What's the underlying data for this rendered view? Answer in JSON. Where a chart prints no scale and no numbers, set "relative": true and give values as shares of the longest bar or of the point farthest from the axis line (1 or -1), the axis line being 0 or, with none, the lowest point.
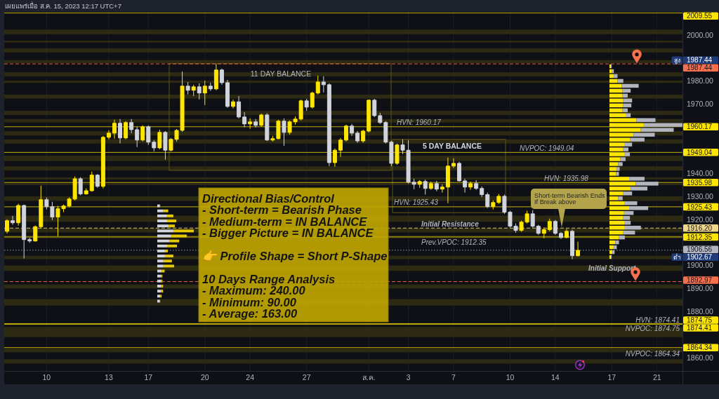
{
  "chart_data": [
    {
      "type": "candlestick",
      "title": "เผยแพร่เมื่อ ส.ค. 15, 2023 12:17 UTC+7",
      "categories": [
        null,
        null,
        null,
        null,
        null,
        null,
        null,
        "10",
        null,
        null,
        null,
        null,
        null,
        null,
        null,
        null,
        null,
        null,
        "13",
        null,
        null,
        null,
        null,
        null,
        null,
        "17",
        null,
        null,
        null,
        null,
        null,
        null,
        null,
        null,
        null,
        "20",
        null,
        null,
        null,
        null,
        null,
        null,
        null,
        "24",
        null,
        null,
        null,
        null,
        null,
        null,
        null,
        null,
        null,
        "27",
        null,
        null,
        null,
        null,
        null,
        null,
        null,
        null,
        null,
        null,
        "ส.ค.",
        null,
        null,
        null,
        null,
        null,
        null,
        "3",
        null,
        null,
        null,
        null,
        null,
        null,
        null,
        "7",
        null,
        null,
        null,
        null,
        null,
        null,
        null,
        null,
        null,
        "10",
        null,
        null,
        null,
        null,
        null,
        null,
        null,
        "14",
        null,
        null,
        null,
        null,
        null,
        null,
        null,
        null,
        null,
        "17",
        null,
        null,
        null,
        null,
        null,
        null,
        null,
        "21",
        null,
        null,
        null,
        null
      ],
      "ohlc": [
        [
          1914.8,
          1920.0,
          1913.9,
          1919.4
        ],
        [
          1919.4,
          1921.5,
          1917.6,
          1918.5
        ],
        [
          1918.5,
          1926.8,
          1917.3,
          1926.0
        ],
        [
          1926.0,
          1926.4,
          1903.0,
          1911.2
        ],
        [
          1911.2,
          1912.0,
          1909.8,
          1910.6
        ],
        [
          1910.6,
          1917.3,
          1910.3,
          1916.8
        ],
        [
          1916.8,
          1934.6,
          1916.0,
          1928.5
        ],
        [
          1928.5,
          1929.5,
          1924.3,
          1925.5
        ],
        [
          1925.5,
          1927.6,
          1919.7,
          1921.0
        ],
        [
          1921.0,
          1925.8,
          1912.7,
          1924.6
        ],
        [
          1924.6,
          1926.4,
          1923.1,
          1925.8
        ],
        [
          1925.8,
          1929.5,
          1925.2,
          1928.8
        ],
        [
          1928.8,
          1938.6,
          1928.2,
          1937.6
        ],
        [
          1937.6,
          1938.3,
          1930.4,
          1931.0
        ],
        [
          1931.0,
          1933.4,
          1930.7,
          1932.4
        ],
        [
          1932.4,
          1940.7,
          1932.0,
          1939.2
        ],
        [
          1939.2,
          1939.6,
          1933.7,
          1934.3
        ],
        [
          1934.3,
          1956.2,
          1933.4,
          1955.6
        ],
        [
          1955.6,
          1958.6,
          1954.7,
          1957.4
        ],
        [
          1957.4,
          1963.2,
          1955.0,
          1961.7
        ],
        [
          1961.7,
          1963.5,
          1952.9,
          1955.3
        ],
        [
          1955.3,
          1962.6,
          1954.7,
          1962.0
        ],
        [
          1962.0,
          1963.5,
          1957.4,
          1958.9
        ],
        [
          1958.9,
          1960.2,
          1951.3,
          1954.4
        ],
        [
          1954.4,
          1960.8,
          1953.8,
          1960.2
        ],
        [
          1960.2,
          1960.8,
          1952.3,
          1953.5
        ],
        [
          1953.5,
          1954.4,
          1949.5,
          1951.0
        ],
        [
          1951.0,
          1958.9,
          1950.4,
          1957.7
        ],
        [
          1957.7,
          1958.3,
          1945.9,
          1950.0
        ],
        [
          1950.0,
          1955.3,
          1949.5,
          1954.7
        ],
        [
          1954.7,
          1959.2,
          1953.8,
          1958.6
        ],
        [
          1958.6,
          1984.2,
          1958.0,
          1977.8
        ],
        [
          1977.8,
          1979.6,
          1974.2,
          1976.0
        ],
        [
          1976.0,
          1978.4,
          1973.5,
          1977.5
        ],
        [
          1977.5,
          1979.0,
          1972.0,
          1974.8
        ],
        [
          1974.8,
          1980.2,
          1969.6,
          1977.8
        ],
        [
          1977.8,
          1979.3,
          1975.7,
          1976.6
        ],
        [
          1976.6,
          1987.44,
          1976.0,
          1984.8
        ],
        [
          1984.8,
          1985.4,
          1978.4,
          1979.3
        ],
        [
          1979.3,
          1980.5,
          1968.4,
          1969.0
        ],
        [
          1969.0,
          1972.0,
          1968.1,
          1971.0
        ],
        [
          1971.0,
          1973.5,
          1963.8,
          1964.4
        ],
        [
          1964.4,
          1966.5,
          1959.9,
          1961.4
        ],
        [
          1961.4,
          1963.8,
          1959.3,
          1962.3
        ],
        [
          1962.3,
          1963.5,
          1959.9,
          1960.8
        ],
        [
          1960.8,
          1965.9,
          1960.2,
          1965.3
        ],
        [
          1965.3,
          1966.0,
          1954.0,
          1954.4
        ],
        [
          1954.4,
          1956.2,
          1953.8,
          1955.0
        ],
        [
          1955.0,
          1963.2,
          1954.7,
          1962.6
        ],
        [
          1962.6,
          1963.8,
          1951.9,
          1957.7
        ],
        [
          1957.7,
          1962.9,
          1956.8,
          1962.3
        ],
        [
          1962.3,
          1964.7,
          1961.1,
          1963.5
        ],
        [
          1963.5,
          1972.0,
          1962.9,
          1971.4
        ],
        [
          1971.4,
          1972.3,
          1967.1,
          1968.7
        ],
        [
          1968.7,
          1975.4,
          1968.1,
          1974.8
        ],
        [
          1974.8,
          1982.4,
          1974.2,
          1979.6
        ],
        [
          1979.6,
          1982.1,
          1975.1,
          1978.4
        ],
        [
          1978.4,
          1979.0,
          1943.1,
          1944.6
        ],
        [
          1944.6,
          1950.7,
          1942.8,
          1950.0
        ],
        [
          1950.0,
          1955.3,
          1947.1,
          1954.4
        ],
        [
          1954.4,
          1961.1,
          1953.8,
          1960.5
        ],
        [
          1960.5,
          1961.4,
          1956.2,
          1957.4
        ],
        [
          1957.4,
          1958.3,
          1953.2,
          1954.0
        ],
        [
          1954.0,
          1958.9,
          1953.2,
          1958.3
        ],
        [
          1958.3,
          1972.0,
          1957.7,
          1971.7
        ],
        [
          1971.7,
          1972.3,
          1964.4,
          1965.0
        ],
        [
          1965.0,
          1966.2,
          1961.4,
          1962.0
        ],
        [
          1962.0,
          1962.6,
          1952.9,
          1953.5
        ],
        [
          1953.5,
          1954.1,
          1943.1,
          1944.3
        ],
        [
          1944.3,
          1952.9,
          1943.7,
          1952.3
        ],
        [
          1952.3,
          1954.7,
          1948.3,
          1950.0
        ],
        [
          1950.0,
          1954.4,
          1935.5,
          1936.1
        ],
        [
          1936.1,
          1937.6,
          1933.1,
          1935.2
        ],
        [
          1935.2,
          1937.0,
          1933.7,
          1936.4
        ],
        [
          1936.4,
          1937.3,
          1930.7,
          1933.4
        ],
        [
          1933.4,
          1936.4,
          1932.8,
          1935.5
        ],
        [
          1935.5,
          1936.7,
          1932.2,
          1933.1
        ],
        [
          1933.1,
          1935.2,
          1931.6,
          1934.0
        ],
        [
          1934.0,
          1946.8,
          1927.0,
          1943.1
        ],
        [
          1943.1,
          1946.5,
          1942.2,
          1944.3
        ],
        [
          1944.3,
          1945.0,
          1936.4,
          1936.7
        ],
        [
          1936.7,
          1937.6,
          1931.6,
          1934.0
        ],
        [
          1934.0,
          1936.4,
          1932.8,
          1935.5
        ],
        [
          1935.5,
          1937.0,
          1932.8,
          1933.4
        ],
        [
          1933.4,
          1934.3,
          1929.7,
          1930.7
        ],
        [
          1930.7,
          1931.6,
          1924.9,
          1925.5
        ],
        [
          1925.5,
          1928.2,
          1924.3,
          1927.3
        ],
        [
          1927.3,
          1931.0,
          1926.7,
          1930.0
        ],
        [
          1930.0,
          1930.7,
          1922.4,
          1923.1
        ],
        [
          1923.1,
          1923.7,
          1916.4,
          1917.0
        ],
        [
          1917.0,
          1918.2,
          1914.2,
          1915.2
        ],
        [
          1915.2,
          1919.4,
          1914.6,
          1918.8
        ],
        [
          1918.8,
          1923.7,
          1918.2,
          1922.4
        ],
        [
          1922.4,
          1924.0,
          1916.4,
          1917.0
        ],
        [
          1917.0,
          1917.6,
          1913.3,
          1913.9
        ],
        [
          1913.9,
          1916.4,
          1911.8,
          1915.5
        ],
        [
          1915.5,
          1920.3,
          1914.8,
          1919.1
        ],
        [
          1919.1,
          1919.7,
          1913.3,
          1913.9
        ],
        [
          1913.9,
          1914.5,
          1911.5,
          1912.1
        ],
        [
          1912.1,
          1915.8,
          1911.8,
          1914.8
        ],
        [
          1914.8,
          1915.5,
          1902.67,
          1904.2
        ],
        [
          1904.2,
          1910.3,
          1903.9,
          1906.56
        ],
        null,
        null,
        null,
        null,
        null,
        null,
        null,
        null,
        null,
        null,
        null,
        null,
        null,
        null,
        null,
        null,
        null,
        null
      ],
      "ylim": [
        1854.2,
        2010.0
      ],
      "yticks": [
        {
          "value": 2000,
          "label": "2000.00"
        },
        {
          "value": 1980,
          "label": "1980.00"
        },
        {
          "value": 1970,
          "label": "1970.00"
        },
        {
          "value": 1940,
          "label": "1940.00"
        },
        {
          "value": 1930,
          "label": "1930.00"
        },
        {
          "value": 1920,
          "label": "1920.00"
        },
        {
          "value": 1900,
          "label": "1900.00"
        },
        {
          "value": 1890,
          "label": "1890.00"
        },
        {
          "value": 1880,
          "label": "1880.00"
        },
        {
          "value": 1860,
          "label": "1860.00"
        }
      ],
      "grid": "x",
      "bands": [
        {
          "axis": "y",
          "from": 2000.3,
          "to": 2002.3,
          "color": "#2d2a14"
        },
        {
          "axis": "y",
          "from": 1996.7,
          "to": 1997.5,
          "color": "#2d2a14"
        },
        {
          "axis": "y",
          "from": 1992.4,
          "to": 1994.2,
          "color": "#2d2a14"
        },
        {
          "axis": "y",
          "from": 1987.8,
          "to": 1989.1,
          "color": "#2d2a14"
        },
        {
          "axis": "y",
          "from": 1982.1,
          "to": 1983.8,
          "color": "#2d2a14"
        },
        {
          "axis": "y",
          "from": 1979.2,
          "to": 1980.2,
          "color": "#2d2a14"
        },
        {
          "axis": "y",
          "from": 1972.4,
          "to": 1974.1,
          "color": "#2d2a14"
        },
        {
          "axis": "y",
          "from": 1965.3,
          "to": 1967.1,
          "color": "#2d2a14"
        },
        {
          "axis": "y",
          "from": 1962.0,
          "to": 1963.5,
          "color": "#2d2a14"
        },
        {
          "axis": "y",
          "from": 1956.4,
          "to": 1958.2,
          "color": "#2d2a14"
        },
        {
          "axis": "y",
          "from": 1952.9,
          "to": 1954.7,
          "color": "#2d2a14"
        },
        {
          "axis": "y",
          "from": 1945.3,
          "to": 1947.6,
          "color": "#2d2a14"
        },
        {
          "axis": "y",
          "from": 1941.2,
          "to": 1943.0,
          "color": "#2d2a14"
        },
        {
          "axis": "y",
          "from": 1937.3,
          "to": 1938.2,
          "color": "#2d2a14"
        },
        {
          "axis": "y",
          "from": 1934.9,
          "to": 1935.6,
          "color": "#2d2a14"
        },
        {
          "axis": "y",
          "from": 1928.0,
          "to": 1930.0,
          "color": "#2d2a14"
        },
        {
          "axis": "y",
          "from": 1918.9,
          "to": 1921.6,
          "color": "#2d2a14"
        },
        {
          "axis": "y",
          "from": 1914.3,
          "to": 1916.2,
          "color": "#2d2a14"
        },
        {
          "axis": "y",
          "from": 1911.8,
          "to": 1913.0,
          "color": "#2d2a14"
        },
        {
          "axis": "y",
          "from": 1902.7,
          "to": 1904.2,
          "color": "#2d2a14"
        },
        {
          "axis": "y",
          "from": 1897.6,
          "to": 1900.0,
          "color": "#2d2a14"
        },
        {
          "axis": "y",
          "from": 1890.0,
          "to": 1891.7,
          "color": "#2d2a14"
        },
        {
          "axis": "y",
          "from": 1882.6,
          "to": 1885.4,
          "color": "#2d2a14"
        },
        {
          "axis": "y",
          "from": 1868.9,
          "to": 1873.3,
          "color": "#2d2a14"
        },
        {
          "axis": "y",
          "from": 1862.3,
          "to": 1864.0,
          "color": "#2d2a14"
        },
        {
          "axis": "y",
          "from": 1857.4,
          "to": 1859.3,
          "color": "#2d2a14"
        }
      ],
      "ref_lines": [
        {
          "axis": "y",
          "value": 2009.55,
          "label": "2009.55",
          "color": "#ffe600",
          "line_style": "solid"
        },
        {
          "axis": "y",
          "value": 1987.44,
          "label": "1987.44",
          "color": "#f7704e",
          "line_style": "dashed"
        },
        {
          "axis": "y",
          "value": 1960.17,
          "label": "1960.17",
          "color": "#ffe600",
          "line_style": "solid"
        },
        {
          "axis": "y",
          "value": 1949.04,
          "label": "1949.04",
          "color": "#ffe600",
          "line_style": "solid"
        },
        {
          "axis": "y",
          "value": 1935.98,
          "label": "1935.98",
          "color": "#ffe600",
          "line_style": "solid"
        },
        {
          "axis": "y",
          "value": 1925.43,
          "label": "1925.43",
          "color": "#ffe600",
          "line_style": "solid"
        },
        {
          "axis": "y",
          "value": 1916.2,
          "label": "1916.20",
          "color": "#f0d78c",
          "line_style": "dashed"
        },
        {
          "axis": "y",
          "value": 1912.35,
          "label": "1912.35",
          "color": "#ffe600",
          "line_style": "solid"
        },
        {
          "axis": "y",
          "value": 1906.56,
          "label": "1906.56",
          "color": "#b2b5be",
          "line_style": "dotted"
        },
        {
          "axis": "y",
          "value": 1892.97,
          "label": "1892.97",
          "color": "#f7704e",
          "line_style": "dashed"
        },
        {
          "axis": "y",
          "value": 1874.75,
          "label": "1874.75",
          "color": "#ffe600",
          "line_style": "solid"
        },
        {
          "axis": "y",
          "value": 1874.41,
          "label": "1874.41",
          "color": "#ffe600",
          "line_style": "solid"
        },
        {
          "axis": "y",
          "value": 1864.34,
          "label": "1864.34",
          "color": "#ffe600",
          "line_style": "solid"
        }
      ],
      "annotations": [
        "Directional Bias/Control\n- Short-term = Bearish Phase\n- Medium-term = IN BALANCE\n- Bigger Picture = IN BALANCE\n\n👉 Profile Shape = Short P-Shape\n\n10 Days Range Analysis\n- Maximum: 240.00\n- Minimum: 90.00\n- Average: 163.00",
        "11 DAY BALANCE",
        "5 DAY BALANCE",
        "Short-term Bearish Ends\nIf Break above",
        {
          "text": "HVN: 1960.17",
          "y": 1960.17
        },
        {
          "text": "NVPOC: 1949.04",
          "y": 1949.04
        },
        {
          "text": "HVN: 1935.98",
          "y": 1935.98
        },
        {
          "text": "HVN: 1925.43",
          "y": 1925.43
        },
        {
          "text": "Initial Resistance",
          "y": 1916.2
        },
        {
          "text": "Prev.VPOC: 1912.35",
          "y": 1912.35
        },
        {
          "text": "Initial Support",
          "y": 1892.97
        },
        {
          "text": "NVPOC: 1874.75",
          "y": 1874.75
        },
        {
          "text": "HVN: 1874.41",
          "y": 1874.41
        },
        {
          "text": "NVPOC: 1864.34",
          "y": 1864.34
        },
        "สูง",
        "1987.44",
        "ต่ำ",
        "1902.67"
      ]
    },
    {
      "type": "bar",
      "orientation": "horizontal",
      "stacked": true,
      "relative": true,
      "categories": [
        null,
        null,
        null,
        null,
        null,
        null,
        null,
        null,
        null,
        null,
        null,
        null,
        null,
        null,
        null,
        null,
        null,
        null,
        null,
        null,
        null,
        null,
        null,
        null,
        null,
        null,
        null,
        null,
        null,
        null,
        null,
        null,
        null,
        null,
        null,
        null,
        null,
        null,
        null,
        null
      ],
      "series": [
        {
          "color": "#ffe600",
          "values": [
            0.02,
            0.03,
            0.06,
            0.11,
            0.17,
            0.18,
            0.18,
            0.19,
            0.19,
            0.18,
            0.23,
            0.37,
            0.47,
            0.43,
            0.33,
            0.28,
            0.21,
            0.19,
            0.21,
            0.15,
            0.12,
            0.1,
            0.09,
            0.27,
            0.36,
            0.29,
            0.19,
            0.12,
            0.21,
            0.27,
            0.2,
            0.19,
            0.21,
            0.21,
            0.19,
            0.13,
            0.08,
            0.06,
            0.04,
            0.02
          ]
        },
        {
          "color": "#b2b5be",
          "values": [
            0.01,
            0.03,
            0.05,
            0.08,
            0.23,
            0.11,
            0.07,
            0.12,
            0.11,
            0.07,
            0.06,
            0.26,
            0.53,
            0.45,
            0.29,
            0.2,
            0.1,
            0.07,
            0.07,
            0.07,
            0.06,
            0.04,
            0.04,
            0.21,
            0.31,
            0.23,
            0.12,
            0.06,
            0.17,
            0.26,
            0.13,
            0.09,
            0.08,
            0.22,
            0.16,
            0.08,
            0.05,
            0.04,
            0.03,
            0.01
          ]
        }
      ]
    },
    {
      "type": "bar",
      "orientation": "horizontal",
      "stacked": true,
      "relative": true,
      "categories": [
        null,
        null,
        null,
        null,
        null,
        null,
        null,
        null,
        null,
        null,
        null,
        null,
        null,
        null,
        null,
        null,
        null,
        null,
        null,
        null
      ],
      "series": [
        {
          "color": "#d1d4dc",
          "values": [
            0.06,
            0.17,
            0.25,
            0.27,
            0.31,
            0.44,
            0.38,
            0.33,
            0.27,
            0.21,
            0.21,
            0.17,
            0.17,
            0.12,
            0.1,
            0.1,
            0.1,
            0.1,
            0.08,
            0.06
          ]
        },
        {
          "color": "#e6c800",
          "values": [
            0.02,
            0.13,
            0.19,
            0.25,
            0.17,
            0.56,
            0.43,
            0.27,
            0.27,
            0.08,
            0.23,
            0.23,
            0.29,
            0.08,
            0.04,
            0.04,
            0.06,
            0.06,
            0.04,
            0.02
          ]
        }
      ]
    }
  ]
}
